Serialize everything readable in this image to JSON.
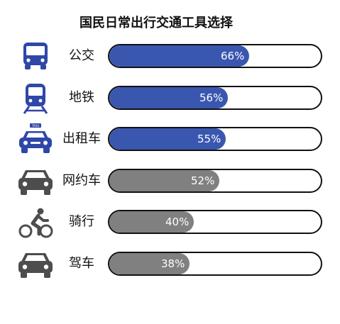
{
  "chart_data": {
    "type": "bar",
    "orientation": "horizontal",
    "title": "国民日常出行交通工具选择",
    "categories": [
      "公交",
      "地铁",
      "出租车",
      "网约车",
      "骑行",
      "驾车"
    ],
    "values": [
      66,
      56,
      55,
      52,
      40,
      38
    ],
    "value_labels": [
      "66%",
      "56%",
      "55%",
      "52%",
      "40%",
      "38%"
    ],
    "icons": [
      "bus-icon",
      "subway-train-icon",
      "taxi-icon",
      "car-icon",
      "cyclist-icon",
      "car-icon"
    ],
    "bar_colors": [
      "#3a57b0",
      "#3a57b0",
      "#3a57b0",
      "#808080",
      "#808080",
      "#808080"
    ],
    "icon_colors": [
      "#2f47a8",
      "#2f47a8",
      "#2f47a8",
      "#4d4d4d",
      "#4d4d4d",
      "#4d4d4d"
    ],
    "xlim": [
      0,
      100
    ],
    "grid": false
  }
}
